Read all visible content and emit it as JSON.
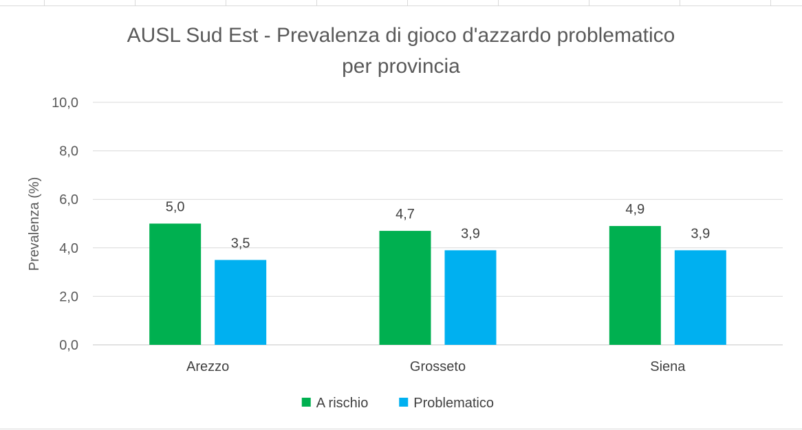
{
  "chart_data": {
    "type": "bar",
    "title": "AUSL Sud Est - Prevalenza di gioco d'azzardo problematico",
    "subtitle": "per provincia",
    "ylabel": "Prevalenza (%)",
    "xlabel": "",
    "categories": [
      "Arezzo",
      "Grosseto",
      "Siena"
    ],
    "series": [
      {
        "name": "A rischio",
        "values": [
          5.0,
          4.7,
          4.9
        ],
        "labels": [
          "5,0",
          "4,7",
          "4,9"
        ],
        "color": "#00b050"
      },
      {
        "name": "Problematico",
        "values": [
          3.5,
          3.9,
          3.9
        ],
        "labels": [
          "3,5",
          "3,9",
          "3,9"
        ],
        "color": "#00b0f0"
      }
    ],
    "ylim": [
      0,
      10
    ],
    "yticks": [
      0,
      2,
      4,
      6,
      8,
      10
    ],
    "ytick_labels": [
      "0,0",
      "2,0",
      "4,0",
      "6,0",
      "8,0",
      "10,0"
    ],
    "grid": true,
    "legend_position": "bottom"
  }
}
